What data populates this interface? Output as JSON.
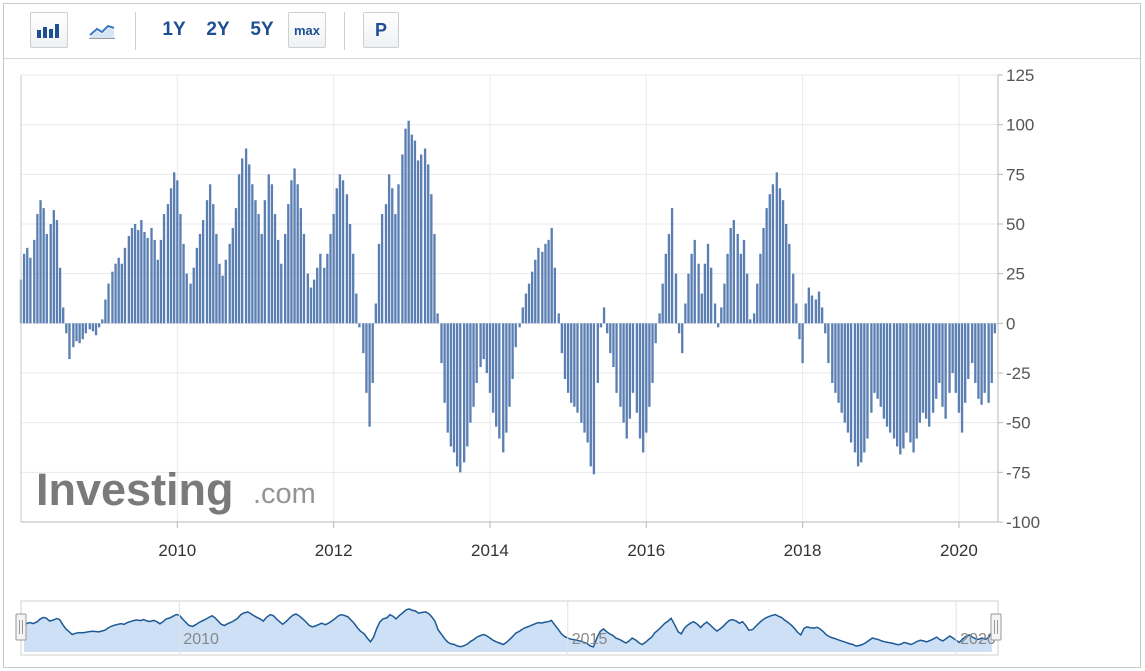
{
  "toolbar": {
    "bar_chart_icon": "bar-chart-icon",
    "line_chart_icon": "line-chart-icon",
    "ranges": [
      "1Y",
      "2Y",
      "5Y",
      "max"
    ],
    "period_button": "P"
  },
  "watermark": {
    "brand": "Investing",
    "suffix": ".com"
  },
  "colors": {
    "bar": "#5b7fb3",
    "navigator_line": "#1d5a95",
    "navigator_fill": "#cde0f5",
    "grid": "#e8eaed"
  },
  "chart_data": {
    "type": "bar",
    "title": "",
    "xlabel": "",
    "ylabel": "",
    "ylim": [
      -100,
      125
    ],
    "y_ticks": [
      125,
      100,
      75,
      50,
      25,
      0,
      -25,
      -50,
      -75,
      -100
    ],
    "xlim": [
      2008.0,
      2020.5
    ],
    "x_ticks": [
      2010,
      2012,
      2014,
      2016,
      2018,
      2020
    ],
    "grid": true,
    "axis_side": "right",
    "series": [
      {
        "values": [
          [
            2008.0,
            22
          ],
          [
            2008.04,
            35
          ],
          [
            2008.08,
            38
          ],
          [
            2008.12,
            33
          ],
          [
            2008.17,
            42
          ],
          [
            2008.21,
            55
          ],
          [
            2008.25,
            62
          ],
          [
            2008.29,
            58
          ],
          [
            2008.33,
            45
          ],
          [
            2008.38,
            50
          ],
          [
            2008.42,
            57
          ],
          [
            2008.46,
            52
          ],
          [
            2008.5,
            28
          ],
          [
            2008.54,
            8
          ],
          [
            2008.58,
            -5
          ],
          [
            2008.62,
            -18
          ],
          [
            2008.67,
            -12
          ],
          [
            2008.71,
            -9
          ],
          [
            2008.75,
            -10
          ],
          [
            2008.79,
            -8
          ],
          [
            2008.83,
            -5
          ],
          [
            2008.88,
            -3
          ],
          [
            2008.92,
            -4
          ],
          [
            2008.96,
            -6
          ],
          [
            2009.0,
            -2
          ],
          [
            2009.04,
            2
          ],
          [
            2009.08,
            12
          ],
          [
            2009.12,
            20
          ],
          [
            2009.17,
            26
          ],
          [
            2009.21,
            30
          ],
          [
            2009.25,
            33
          ],
          [
            2009.29,
            30
          ],
          [
            2009.33,
            38
          ],
          [
            2009.38,
            44
          ],
          [
            2009.42,
            48
          ],
          [
            2009.46,
            50
          ],
          [
            2009.5,
            47
          ],
          [
            2009.54,
            52
          ],
          [
            2009.58,
            46
          ],
          [
            2009.62,
            43
          ],
          [
            2009.67,
            48
          ],
          [
            2009.71,
            42
          ],
          [
            2009.75,
            32
          ],
          [
            2009.79,
            42
          ],
          [
            2009.83,
            55
          ],
          [
            2009.88,
            60
          ],
          [
            2009.92,
            68
          ],
          [
            2009.96,
            76
          ],
          [
            2010.0,
            72
          ],
          [
            2010.04,
            55
          ],
          [
            2010.08,
            40
          ],
          [
            2010.12,
            25
          ],
          [
            2010.17,
            20
          ],
          [
            2010.21,
            28
          ],
          [
            2010.25,
            38
          ],
          [
            2010.29,
            45
          ],
          [
            2010.33,
            52
          ],
          [
            2010.38,
            62
          ],
          [
            2010.42,
            70
          ],
          [
            2010.46,
            60
          ],
          [
            2010.5,
            45
          ],
          [
            2010.54,
            30
          ],
          [
            2010.58,
            24
          ],
          [
            2010.62,
            32
          ],
          [
            2010.67,
            40
          ],
          [
            2010.71,
            48
          ],
          [
            2010.75,
            58
          ],
          [
            2010.79,
            75
          ],
          [
            2010.83,
            83
          ],
          [
            2010.88,
            88
          ],
          [
            2010.92,
            80
          ],
          [
            2010.96,
            70
          ],
          [
            2011.0,
            62
          ],
          [
            2011.04,
            55
          ],
          [
            2011.08,
            45
          ],
          [
            2011.12,
            62
          ],
          [
            2011.17,
            75
          ],
          [
            2011.21,
            70
          ],
          [
            2011.25,
            55
          ],
          [
            2011.29,
            42
          ],
          [
            2011.33,
            30
          ],
          [
            2011.38,
            45
          ],
          [
            2011.42,
            60
          ],
          [
            2011.46,
            72
          ],
          [
            2011.5,
            78
          ],
          [
            2011.54,
            70
          ],
          [
            2011.58,
            58
          ],
          [
            2011.62,
            45
          ],
          [
            2011.67,
            25
          ],
          [
            2011.71,
            18
          ],
          [
            2011.75,
            22
          ],
          [
            2011.79,
            28
          ],
          [
            2011.83,
            35
          ],
          [
            2011.88,
            28
          ],
          [
            2011.92,
            35
          ],
          [
            2011.96,
            45
          ],
          [
            2012.0,
            55
          ],
          [
            2012.04,
            68
          ],
          [
            2012.08,
            75
          ],
          [
            2012.12,
            72
          ],
          [
            2012.17,
            65
          ],
          [
            2012.21,
            50
          ],
          [
            2012.25,
            35
          ],
          [
            2012.29,
            15
          ],
          [
            2012.33,
            -2
          ],
          [
            2012.38,
            -15
          ],
          [
            2012.42,
            -35
          ],
          [
            2012.46,
            -52
          ],
          [
            2012.5,
            -30
          ],
          [
            2012.54,
            10
          ],
          [
            2012.58,
            40
          ],
          [
            2012.62,
            55
          ],
          [
            2012.67,
            60
          ],
          [
            2012.71,
            75
          ],
          [
            2012.75,
            68
          ],
          [
            2012.79,
            55
          ],
          [
            2012.83,
            70
          ],
          [
            2012.88,
            85
          ],
          [
            2012.92,
            98
          ],
          [
            2012.96,
            102
          ],
          [
            2013.0,
            95
          ],
          [
            2013.04,
            92
          ],
          [
            2013.08,
            82
          ],
          [
            2013.12,
            85
          ],
          [
            2013.17,
            88
          ],
          [
            2013.21,
            80
          ],
          [
            2013.25,
            65
          ],
          [
            2013.29,
            45
          ],
          [
            2013.33,
            5
          ],
          [
            2013.38,
            -20
          ],
          [
            2013.42,
            -40
          ],
          [
            2013.46,
            -55
          ],
          [
            2013.5,
            -62
          ],
          [
            2013.54,
            -65
          ],
          [
            2013.58,
            -72
          ],
          [
            2013.62,
            -75
          ],
          [
            2013.67,
            -70
          ],
          [
            2013.71,
            -62
          ],
          [
            2013.75,
            -50
          ],
          [
            2013.79,
            -42
          ],
          [
            2013.83,
            -30
          ],
          [
            2013.88,
            -22
          ],
          [
            2013.92,
            -18
          ],
          [
            2013.96,
            -25
          ],
          [
            2014.0,
            -35
          ],
          [
            2014.04,
            -45
          ],
          [
            2014.08,
            -52
          ],
          [
            2014.12,
            -58
          ],
          [
            2014.17,
            -65
          ],
          [
            2014.21,
            -55
          ],
          [
            2014.25,
            -42
          ],
          [
            2014.29,
            -28
          ],
          [
            2014.33,
            -12
          ],
          [
            2014.38,
            -2
          ],
          [
            2014.42,
            8
          ],
          [
            2014.46,
            15
          ],
          [
            2014.5,
            20
          ],
          [
            2014.54,
            26
          ],
          [
            2014.58,
            32
          ],
          [
            2014.62,
            38
          ],
          [
            2014.67,
            36
          ],
          [
            2014.71,
            40
          ],
          [
            2014.75,
            42
          ],
          [
            2014.79,
            48
          ],
          [
            2014.83,
            28
          ],
          [
            2014.88,
            5
          ],
          [
            2014.92,
            -15
          ],
          [
            2014.96,
            -28
          ],
          [
            2015.0,
            -35
          ],
          [
            2015.04,
            -40
          ],
          [
            2015.08,
            -42
          ],
          [
            2015.12,
            -45
          ],
          [
            2015.17,
            -50
          ],
          [
            2015.21,
            -55
          ],
          [
            2015.25,
            -60
          ],
          [
            2015.29,
            -72
          ],
          [
            2015.33,
            -76
          ],
          [
            2015.38,
            -30
          ],
          [
            2015.42,
            -2
          ],
          [
            2015.46,
            8
          ],
          [
            2015.5,
            -5
          ],
          [
            2015.54,
            -15
          ],
          [
            2015.58,
            -22
          ],
          [
            2015.62,
            -35
          ],
          [
            2015.67,
            -42
          ],
          [
            2015.71,
            -50
          ],
          [
            2015.75,
            -58
          ],
          [
            2015.79,
            -48
          ],
          [
            2015.83,
            -35
          ],
          [
            2015.88,
            -45
          ],
          [
            2015.92,
            -58
          ],
          [
            2015.96,
            -65
          ],
          [
            2016.0,
            -55
          ],
          [
            2016.04,
            -42
          ],
          [
            2016.08,
            -30
          ],
          [
            2016.12,
            -10
          ],
          [
            2016.17,
            5
          ],
          [
            2016.21,
            20
          ],
          [
            2016.25,
            35
          ],
          [
            2016.29,
            45
          ],
          [
            2016.33,
            58
          ],
          [
            2016.38,
            25
          ],
          [
            2016.42,
            -5
          ],
          [
            2016.46,
            -15
          ],
          [
            2016.5,
            10
          ],
          [
            2016.54,
            25
          ],
          [
            2016.58,
            35
          ],
          [
            2016.62,
            42
          ],
          [
            2016.67,
            30
          ],
          [
            2016.71,
            15
          ],
          [
            2016.75,
            30
          ],
          [
            2016.79,
            40
          ],
          [
            2016.83,
            28
          ],
          [
            2016.88,
            10
          ],
          [
            2016.92,
            -2
          ],
          [
            2016.96,
            8
          ],
          [
            2017.0,
            20
          ],
          [
            2017.04,
            35
          ],
          [
            2017.08,
            48
          ],
          [
            2017.12,
            52
          ],
          [
            2017.17,
            45
          ],
          [
            2017.21,
            35
          ],
          [
            2017.25,
            42
          ],
          [
            2017.29,
            25
          ],
          [
            2017.33,
            2
          ],
          [
            2017.38,
            5
          ],
          [
            2017.42,
            20
          ],
          [
            2017.46,
            35
          ],
          [
            2017.5,
            48
          ],
          [
            2017.54,
            58
          ],
          [
            2017.58,
            65
          ],
          [
            2017.62,
            70
          ],
          [
            2017.67,
            76
          ],
          [
            2017.71,
            68
          ],
          [
            2017.75,
            62
          ],
          [
            2017.79,
            50
          ],
          [
            2017.83,
            40
          ],
          [
            2017.88,
            25
          ],
          [
            2017.92,
            10
          ],
          [
            2017.96,
            -8
          ],
          [
            2018.0,
            -20
          ],
          [
            2018.04,
            10
          ],
          [
            2018.08,
            18
          ],
          [
            2018.12,
            14
          ],
          [
            2018.17,
            12
          ],
          [
            2018.21,
            16
          ],
          [
            2018.25,
            8
          ],
          [
            2018.29,
            -5
          ],
          [
            2018.33,
            -20
          ],
          [
            2018.38,
            -30
          ],
          [
            2018.42,
            -35
          ],
          [
            2018.46,
            -40
          ],
          [
            2018.5,
            -45
          ],
          [
            2018.54,
            -50
          ],
          [
            2018.58,
            -55
          ],
          [
            2018.62,
            -60
          ],
          [
            2018.67,
            -65
          ],
          [
            2018.71,
            -72
          ],
          [
            2018.75,
            -70
          ],
          [
            2018.79,
            -65
          ],
          [
            2018.83,
            -58
          ],
          [
            2018.88,
            -45
          ],
          [
            2018.92,
            -35
          ],
          [
            2018.96,
            -38
          ],
          [
            2019.0,
            -42
          ],
          [
            2019.04,
            -48
          ],
          [
            2019.08,
            -52
          ],
          [
            2019.12,
            -55
          ],
          [
            2019.17,
            -58
          ],
          [
            2019.21,
            -62
          ],
          [
            2019.25,
            -66
          ],
          [
            2019.29,
            -63
          ],
          [
            2019.33,
            -55
          ],
          [
            2019.38,
            -60
          ],
          [
            2019.42,
            -65
          ],
          [
            2019.46,
            -58
          ],
          [
            2019.5,
            -50
          ],
          [
            2019.54,
            -45
          ],
          [
            2019.58,
            -48
          ],
          [
            2019.62,
            -52
          ],
          [
            2019.67,
            -45
          ],
          [
            2019.71,
            -38
          ],
          [
            2019.75,
            -30
          ],
          [
            2019.79,
            -42
          ],
          [
            2019.83,
            -48
          ],
          [
            2019.88,
            -35
          ],
          [
            2019.92,
            -25
          ],
          [
            2019.96,
            -35
          ],
          [
            2020.0,
            -45
          ],
          [
            2020.04,
            -55
          ],
          [
            2020.08,
            -40
          ],
          [
            2020.12,
            -28
          ],
          [
            2020.17,
            -20
          ],
          [
            2020.21,
            -30
          ],
          [
            2020.25,
            -38
          ],
          [
            2020.29,
            -41
          ],
          [
            2020.33,
            -35
          ],
          [
            2020.38,
            -40
          ],
          [
            2020.42,
            -30
          ],
          [
            2020.46,
            -5
          ]
        ]
      }
    ],
    "navigator": {
      "type": "area",
      "x_ticks": [
        2010,
        2015,
        2020
      ]
    }
  }
}
